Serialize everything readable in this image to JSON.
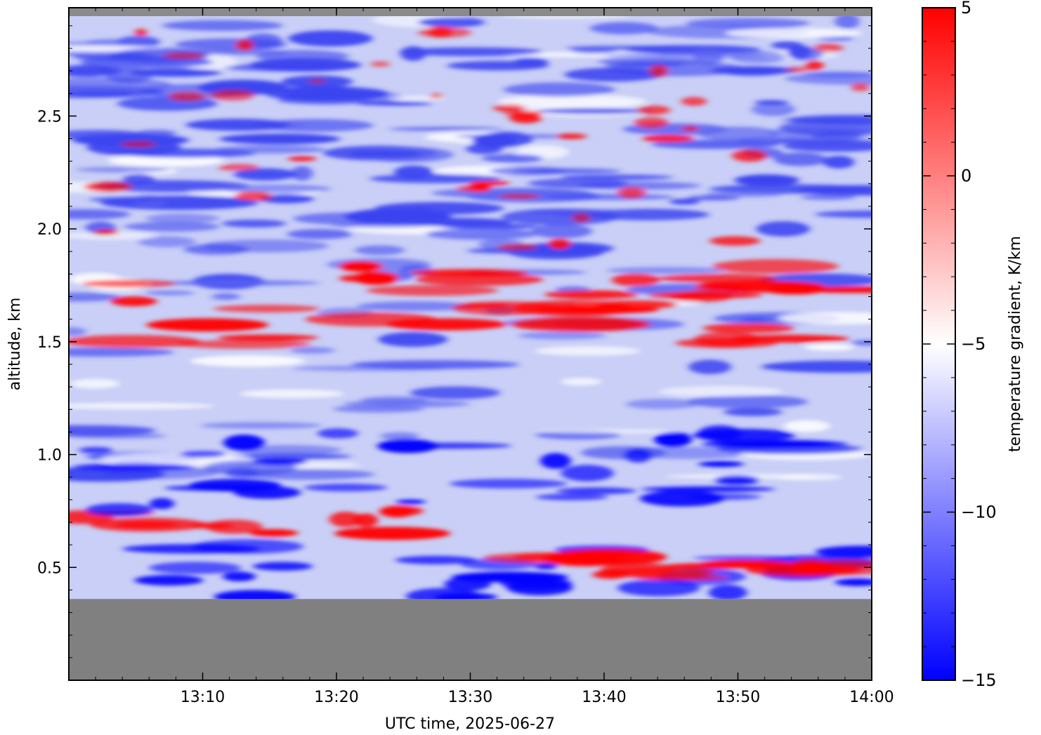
{
  "chart_data": {
    "type": "heatmap",
    "title": "",
    "xlabel": "UTC time,  2025-06-27",
    "ylabel": "altitude, km",
    "x_ticks": [
      "13:10",
      "13:20",
      "13:30",
      "13:40",
      "13:50",
      "14:00"
    ],
    "x_tick_minutes": [
      10,
      20,
      30,
      40,
      50,
      60
    ],
    "xlim_minutes": [
      0,
      60
    ],
    "y_ticks": [
      "0.5",
      "1.0",
      "1.5",
      "2.0",
      "2.5"
    ],
    "y_tick_values": [
      0.5,
      1.0,
      1.5,
      2.0,
      2.5
    ],
    "ylim": [
      0.0,
      2.98
    ],
    "no_data_below_km": 0.36,
    "colorbar": {
      "label": "temperature gradient, K/km",
      "ticks": [
        "5",
        "0",
        "−5",
        "−10",
        "−15"
      ],
      "tick_values": [
        5,
        0,
        -5,
        -10,
        -15
      ],
      "range": [
        -15,
        5
      ],
      "colors": {
        "low": "#0000ff",
        "mid": "#ffffff",
        "high": "#ff0000",
        "no_data": "#808080"
      }
    },
    "layers_approx": [
      {
        "alt_km": [
          0.36,
          0.62
        ],
        "gradient_K_per_km": -15,
        "note": "strong blue with red patches near surface"
      },
      {
        "alt_km": [
          0.45,
          0.55
        ],
        "gradient_K_per_km": 5,
        "minutes": [
          35,
          60
        ]
      },
      {
        "alt_km": [
          0.65,
          0.75
        ],
        "gradient_K_per_km": 5,
        "minutes": [
          1,
          25
        ]
      },
      {
        "alt_km": [
          0.75,
          1.1
        ],
        "gradient_K_per_km": -13
      },
      {
        "alt_km": [
          1.45,
          1.85
        ],
        "gradient_K_per_km": 5,
        "note": "elevated inversion layer across the period"
      },
      {
        "alt_km": [
          1.9,
          2.98
        ],
        "gradient_K_per_km": -9,
        "note": "mostly light blue with scattered red"
      }
    ]
  }
}
